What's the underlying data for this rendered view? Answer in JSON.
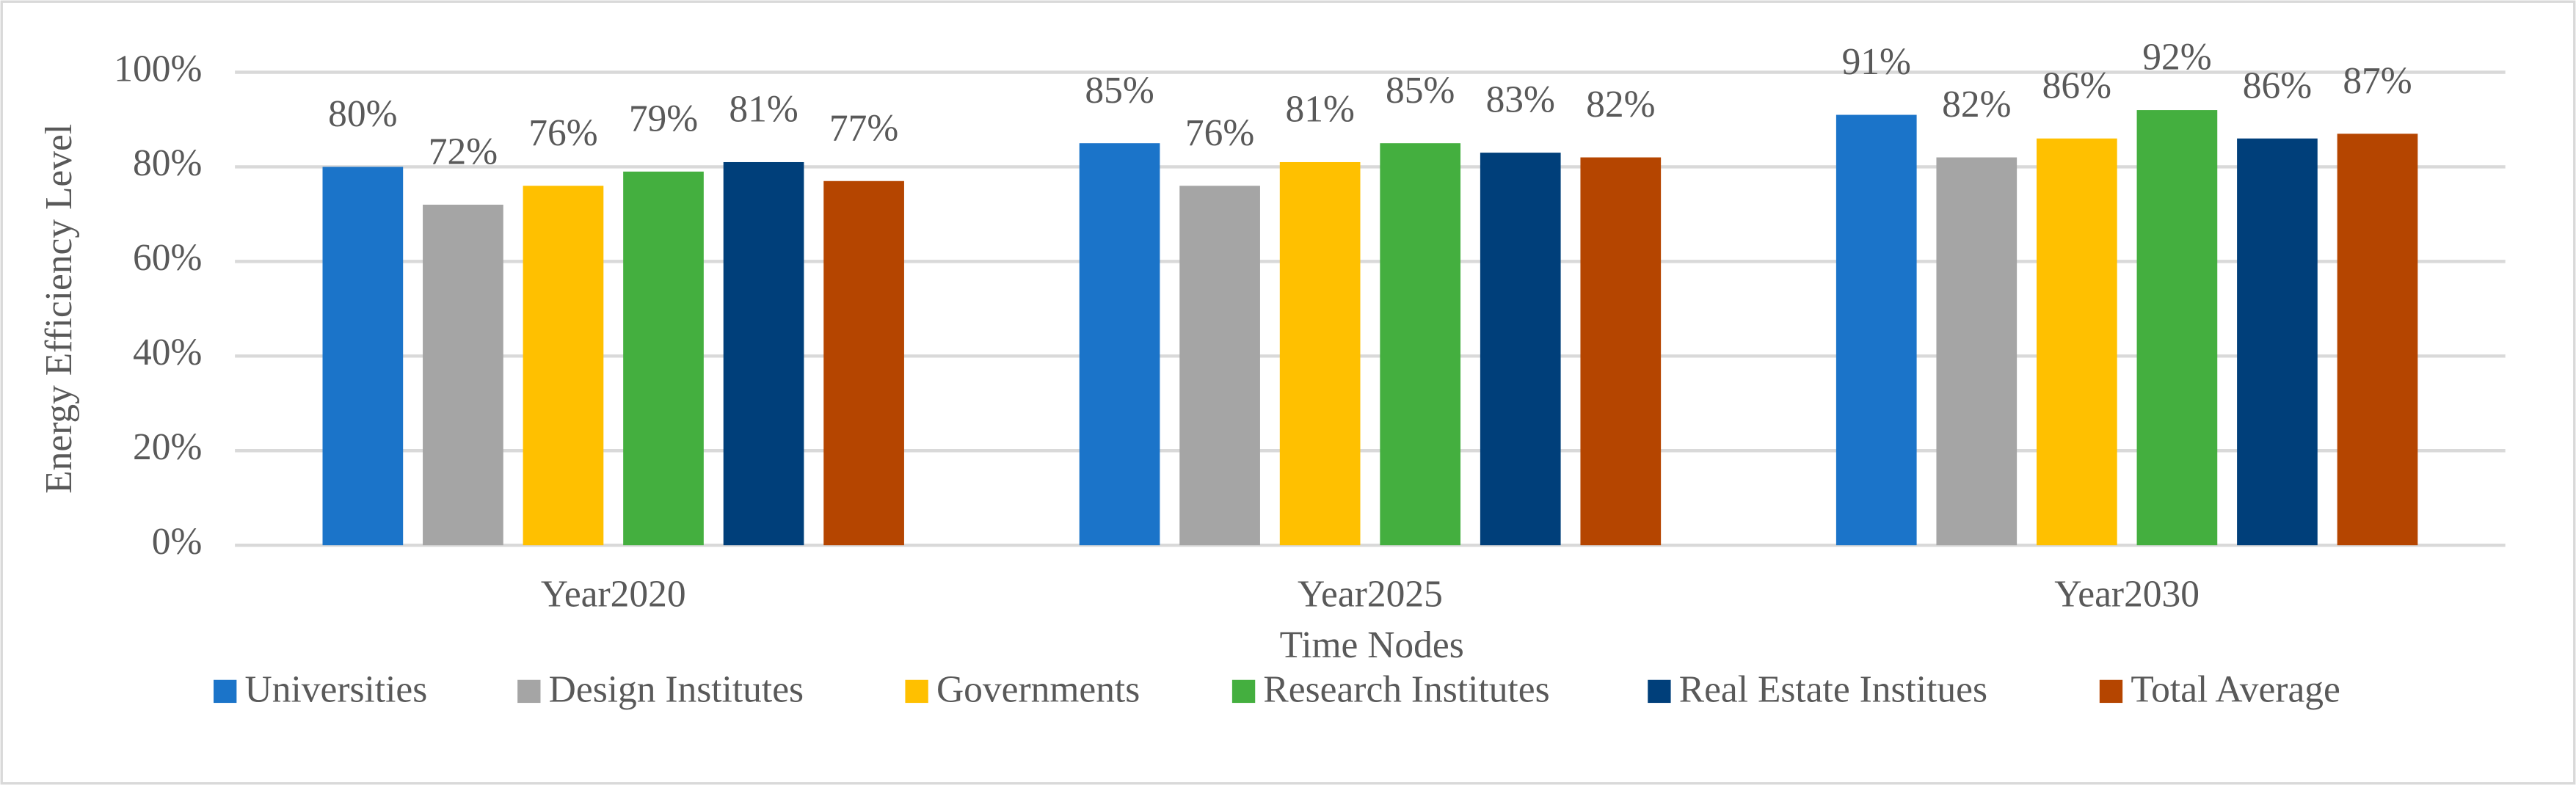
{
  "chart_data": {
    "type": "bar",
    "x_label": "Time Nodes",
    "y_label": "Energy Efficiency Level",
    "categories": [
      "Year2020",
      "Year2025",
      "Year2030"
    ],
    "series": [
      {
        "name": "Universities",
        "color": "#1B74C9",
        "values": [
          80,
          85,
          91
        ],
        "value_labels": [
          "80%",
          "85%",
          "91%"
        ]
      },
      {
        "name": "Design Institutes",
        "color": "#A5A5A5",
        "values": [
          72,
          76,
          82
        ],
        "value_labels": [
          "72%",
          "76%",
          "82%"
        ]
      },
      {
        "name": "Governments",
        "color": "#FFC000",
        "values": [
          76,
          81,
          86
        ],
        "value_labels": [
          "76%",
          "81%",
          "86%"
        ]
      },
      {
        "name": "Research Institutes",
        "color": "#44AF3F",
        "values": [
          79,
          85,
          92
        ],
        "value_labels": [
          "79%",
          "85%",
          "92%"
        ]
      },
      {
        "name": "Real Estate Institues",
        "color": "#003F7A",
        "values": [
          81,
          83,
          86
        ],
        "value_labels": [
          "81%",
          "83%",
          "86%"
        ]
      },
      {
        "name": "Total Average",
        "color": "#B54500",
        "values": [
          77,
          82,
          87
        ],
        "value_labels": [
          "77%",
          "82%",
          "87%"
        ]
      }
    ],
    "ylim": [
      0,
      100
    ],
    "yticks": [
      {
        "value": 0,
        "label": "0%"
      },
      {
        "value": 20,
        "label": "20%"
      },
      {
        "value": 40,
        "label": "40%"
      },
      {
        "value": 60,
        "label": "60%"
      },
      {
        "value": 80,
        "label": "80%"
      },
      {
        "value": 100,
        "label": "100%"
      }
    ],
    "grid": true,
    "legend": "bottom"
  }
}
